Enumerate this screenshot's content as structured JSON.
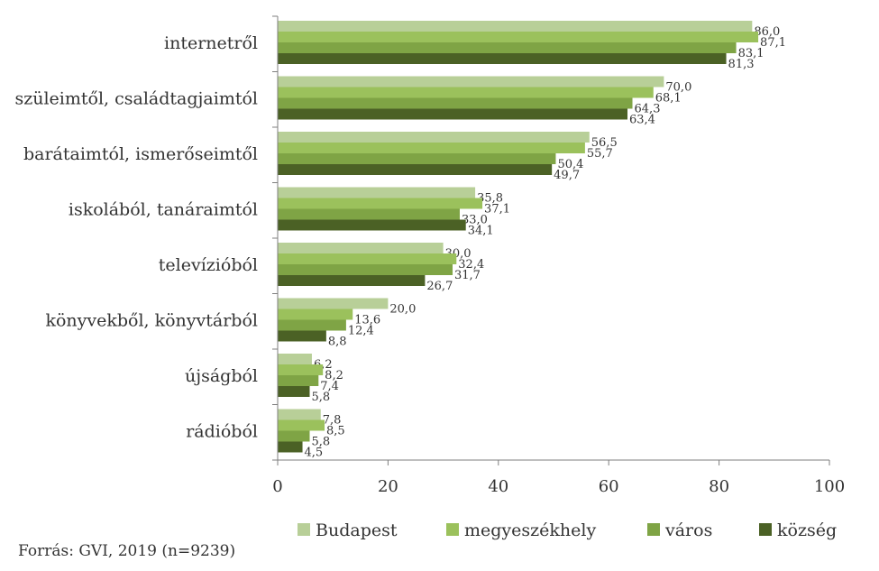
{
  "chart_data": {
    "type": "bar",
    "orientation": "horizontal",
    "categories": [
      "internetről",
      "szüleimtől, családtagjaimtól",
      "barátaimtól, ismerőseimtől",
      "iskolából, tanáraimtól",
      "televízióból",
      "könyvekből, könyvtárból",
      "újságból",
      "rádióból"
    ],
    "series": [
      {
        "name": "Budapest",
        "color": "#b8cf98",
        "values": [
          86.0,
          70.0,
          56.5,
          35.8,
          30.0,
          20.0,
          6.2,
          7.8
        ]
      },
      {
        "name": "megyeszékhely",
        "color": "#9bc15c",
        "values": [
          87.1,
          68.1,
          55.7,
          37.1,
          32.4,
          13.6,
          8.2,
          8.5
        ]
      },
      {
        "name": "város",
        "color": "#7fa445",
        "values": [
          83.1,
          64.3,
          50.4,
          33.0,
          31.7,
          12.4,
          7.4,
          5.8
        ]
      },
      {
        "name": "község",
        "color": "#4b6125",
        "values": [
          81.3,
          63.4,
          49.7,
          34.1,
          26.7,
          8.8,
          5.8,
          4.5
        ]
      }
    ],
    "value_labels": [
      [
        "86,0",
        "70,0",
        "56,5",
        "35,8",
        "30,0",
        "20,0",
        "6,2",
        "7,8"
      ],
      [
        "87,1",
        "68,1",
        "55,7",
        "37,1",
        "32,4",
        "13,6",
        "8,2",
        "8,5"
      ],
      [
        "83,1",
        "64,3",
        "50,4",
        "33,0",
        "31,7",
        "12,4",
        "7,4",
        "5,8"
      ],
      [
        "81,3",
        "63,4",
        "49,7",
        "34,1",
        "26,7",
        "8,8",
        "5,8",
        "4,5"
      ]
    ],
    "xlim": [
      0,
      100
    ],
    "xticks": [
      0,
      20,
      40,
      60,
      80,
      100
    ],
    "xtick_labels": [
      "0",
      "20",
      "40",
      "60",
      "80",
      "100"
    ],
    "grid": false,
    "legend": "bottom"
  },
  "source_text": "Forrás: GVI, 2019 (n=9239)"
}
